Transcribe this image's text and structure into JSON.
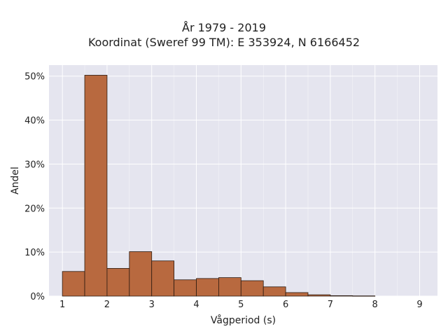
{
  "chart_data": {
    "type": "bar",
    "title": "År 1979 - 2019",
    "subtitle": "Koordinat (Sweref 99 TM): E 353924, N 6166452",
    "xlabel": "Vågperiod (s)",
    "ylabel": "Andel",
    "xlim": [
      0.7,
      9.4
    ],
    "ylim": [
      0,
      52.5
    ],
    "x_ticks": [
      1,
      2,
      3,
      4,
      5,
      6,
      7,
      8,
      9
    ],
    "y_ticks": [
      0,
      10,
      20,
      30,
      40,
      50
    ],
    "y_tick_labels": [
      "0%",
      "10%",
      "20%",
      "30%",
      "40%",
      "50%"
    ],
    "bin_width": 0.5,
    "bins": [
      {
        "start": 1.0,
        "value": 5.6
      },
      {
        "start": 1.5,
        "value": 50.2
      },
      {
        "start": 2.0,
        "value": 6.3
      },
      {
        "start": 2.5,
        "value": 10.1
      },
      {
        "start": 3.0,
        "value": 8.0
      },
      {
        "start": 3.5,
        "value": 3.7
      },
      {
        "start": 4.0,
        "value": 4.0
      },
      {
        "start": 4.5,
        "value": 4.2
      },
      {
        "start": 5.0,
        "value": 3.5
      },
      {
        "start": 5.5,
        "value": 2.1
      },
      {
        "start": 6.0,
        "value": 0.8
      },
      {
        "start": 6.5,
        "value": 0.3
      },
      {
        "start": 7.0,
        "value": 0.1
      },
      {
        "start": 7.5,
        "value": 0.05
      }
    ],
    "grid": true,
    "colors": {
      "bar_fill": "#b8693f",
      "bar_edge": "#2b1a10",
      "plot_bg": "#e5e5ef",
      "grid": "#ffffff"
    }
  }
}
